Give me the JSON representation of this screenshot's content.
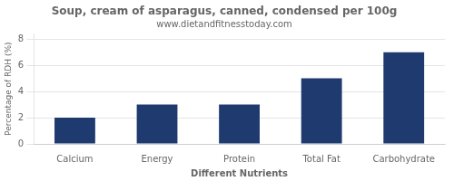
{
  "chart_data": {
    "type": "bar",
    "title": "Soup, cream of asparagus, canned, condensed per 100g",
    "subtitle": "www.dietandfitnesstoday.com",
    "categories": [
      "Calcium",
      "Energy",
      "Protein",
      "Total Fat",
      "Carbohydrate"
    ],
    "values": [
      2.0,
      3.0,
      3.0,
      5.0,
      7.0
    ],
    "color": "#1e3a6e",
    "xlabel": "Different Nutrients",
    "ylabel": "Percentage of RDH (%)",
    "ylim": [
      0,
      8.4
    ],
    "yticks": [
      0,
      2,
      4,
      6,
      8
    ],
    "grid": true
  }
}
